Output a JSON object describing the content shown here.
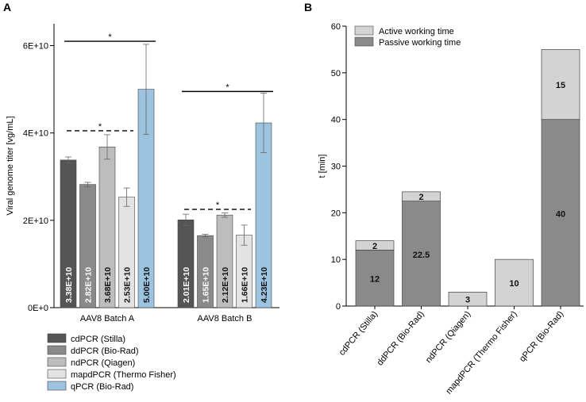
{
  "chart_data": [
    {
      "panel_label": "A",
      "type": "bar",
      "ylabel": "Viral genome titer [vg/mL]",
      "ylim": [
        0,
        65000000000.0
      ],
      "yticks": [
        0,
        20000000000.0,
        40000000000.0,
        60000000000.0
      ],
      "yticklabels": [
        "0E+0",
        "2E+10",
        "4E+10",
        "6E+10"
      ],
      "categories": [
        "AAV8 Batch A",
        "AAV8 Batch B"
      ],
      "series": [
        {
          "name": "cdPCR (Stilla)",
          "color": "#555555",
          "label_color": "#ffffff",
          "values": [
            33800000000.0,
            20100000000.0
          ],
          "errors": [
            700000000.0,
            1300000000.0
          ],
          "labels": [
            "3.38E+10",
            "2.01E+10"
          ]
        },
        {
          "name": "ddPCR (Bio-Rad)",
          "color": "#8a8a8a",
          "label_color": "#ffffff",
          "values": [
            28200000000.0,
            16500000000.0
          ],
          "errors": [
            500000000.0,
            300000000.0
          ],
          "labels": [
            "2.82E+10",
            "1.65E+10"
          ]
        },
        {
          "name": "ndPCR (Qiagen)",
          "color": "#bdbdbd",
          "label_color": "#111111",
          "values": [
            36800000000.0,
            21200000000.0
          ],
          "errors": [
            2800000000.0,
            500000000.0
          ],
          "labels": [
            "3.68E+10",
            "2.12E+10"
          ]
        },
        {
          "name": "mapdPCR (Thermo Fisher)",
          "color": "#e3e3e3",
          "label_color": "#111111",
          "values": [
            25300000000.0,
            16600000000.0
          ],
          "errors": [
            2100000000.0,
            2300000000.0
          ],
          "labels": [
            "2.53E+10",
            "1.66E+10"
          ]
        },
        {
          "name": "qPCR (Bio-Rad)",
          "color": "#9cc3e0",
          "label_color": "#111111",
          "values": [
            50000000000.0,
            42300000000.0
          ],
          "errors": [
            10300000000.0,
            6800000000.0
          ],
          "labels": [
            "5.00E+10",
            "4.23E+10"
          ]
        }
      ],
      "significance": [
        {
          "group": 0,
          "style": "solid",
          "y": 61000000000.0,
          "label": "*"
        },
        {
          "group": 0,
          "style": "dashed",
          "y": 40500000000.0,
          "label": "*"
        },
        {
          "group": 1,
          "style": "solid",
          "y": 49500000000.0,
          "label": "*"
        },
        {
          "group": 1,
          "style": "dashed",
          "y": 22500000000.0,
          "label": "*"
        }
      ]
    },
    {
      "panel_label": "B",
      "type": "bar",
      "stacked": true,
      "ylabel": "t [min]",
      "ylim": [
        0,
        60
      ],
      "yticks": [
        0,
        10,
        20,
        30,
        40,
        50,
        60
      ],
      "categories": [
        "cdPCR (Stilla)",
        "ddPCR (Bio-Rad)",
        "ndPCR (Qiagen)",
        "mapdPCR (Thermo Fisher)",
        "qPCR (Bio-Rad)"
      ],
      "series": [
        {
          "name": "Passive working time",
          "color": "#8a8a8a",
          "values": [
            12,
            22.5,
            0,
            0,
            40
          ],
          "labels": [
            "12",
            "22.5",
            "",
            "",
            "40"
          ]
        },
        {
          "name": "Active working time",
          "color": "#d3d3d3",
          "values": [
            2,
            2,
            3,
            10,
            15
          ],
          "labels": [
            "2",
            "2",
            "3",
            "10",
            "15"
          ]
        }
      ],
      "legend_order": [
        "Active working time",
        "Passive working time"
      ]
    }
  ]
}
